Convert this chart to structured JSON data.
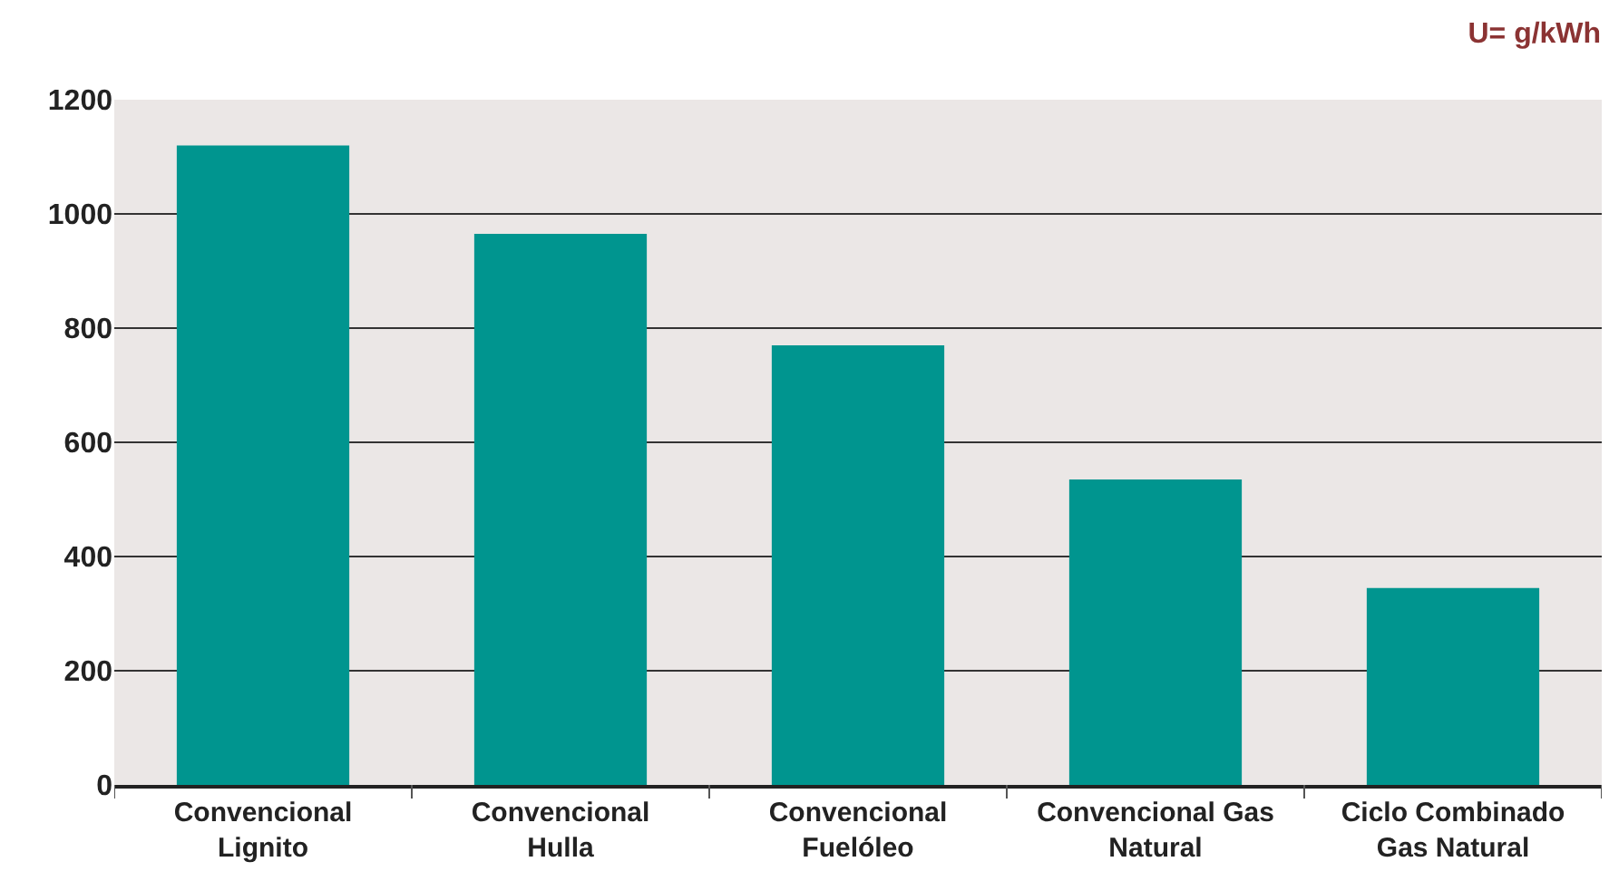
{
  "chart_data": {
    "type": "bar",
    "title": "U= g/kWh",
    "categories": [
      "Convencional\nLignito",
      "Convencional\nHulla",
      "Convencional\nFuelóleo",
      "Convencional Gas\nNatural",
      "Ciclo Combinado\nGas Natural"
    ],
    "values": [
      1120,
      965,
      770,
      535,
      345
    ],
    "color": "#00958f",
    "ylim": [
      0,
      1200
    ],
    "yticks": [
      0,
      200,
      400,
      600,
      800,
      1000,
      1200
    ],
    "grid": "y",
    "legend": false
  }
}
